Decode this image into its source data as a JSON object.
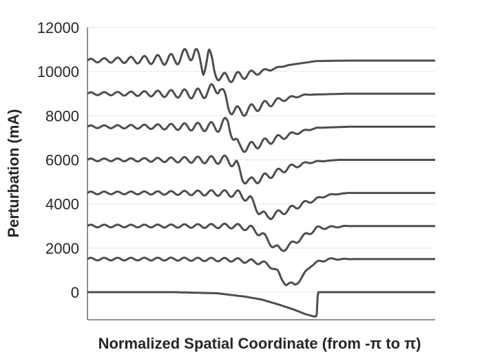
{
  "chart_data": {
    "type": "line",
    "title": "",
    "xlabel": "Normalized Spatial Coordinate (from -π to π)",
    "ylabel": "Perturbation (mA)",
    "xlim": [
      -3.14159,
      3.14159
    ],
    "ylim": [
      -1250,
      12000
    ],
    "yticks": [
      0,
      2000,
      4000,
      6000,
      8000,
      10000,
      12000
    ],
    "grid": "horizontal",
    "legend": "none",
    "line_color": "#4d4d4d",
    "series": [
      {
        "x": [
          -3.14,
          -1.57,
          -0.8,
          -0.3,
          0.0,
          0.3,
          0.6,
          0.8,
          0.95,
          1.0,
          1.02,
          1.57,
          3.14
        ],
        "values": [
          0,
          0,
          -50,
          -200,
          -330,
          -550,
          -800,
          -1000,
          -1100,
          -1100,
          0,
          0,
          0
        ]
      },
      {
        "x": [
          -3.14,
          -1.57,
          -0.5,
          0.0,
          0.2,
          0.3,
          0.35,
          0.45,
          0.6,
          0.75,
          0.9,
          1.2,
          3.14
        ],
        "values": [
          1500,
          1500,
          1470,
          1350,
          1150,
          900,
          650,
          380,
          340,
          700,
          1250,
          1500,
          1500
        ]
      },
      {
        "x": [
          -3.14,
          -1.57,
          -0.5,
          -0.2,
          0.0,
          0.2,
          0.35,
          0.5,
          0.75,
          1.0,
          1.57,
          3.14
        ],
        "values": [
          3000,
          3000,
          3000,
          2900,
          2650,
          2150,
          1900,
          2100,
          2500,
          2900,
          3000,
          3000
        ]
      },
      {
        "x": [
          -3.14,
          -1.57,
          -0.8,
          -0.4,
          -0.2,
          -0.05,
          0.1,
          0.4,
          0.8,
          1.2,
          1.57,
          3.14
        ],
        "values": [
          4500,
          4500,
          4500,
          4450,
          4200,
          3700,
          3400,
          3650,
          4050,
          4400,
          4500,
          4500
        ]
      },
      {
        "x": [
          -3.14,
          -1.57,
          -0.9,
          -0.6,
          -0.45,
          -0.35,
          -0.2,
          0.1,
          0.5,
          0.9,
          1.4,
          3.14
        ],
        "values": [
          6000,
          6000,
          6000,
          6000,
          5800,
          5200,
          5000,
          5250,
          5650,
          5900,
          6000,
          6000
        ]
      },
      {
        "x": [
          -3.14,
          -1.57,
          -1.0,
          -0.75,
          -0.6,
          -0.5,
          -0.4,
          -0.2,
          0.2,
          0.6,
          1.0,
          1.57,
          3.14
        ],
        "values": [
          7500,
          7500,
          7500,
          7500,
          7750,
          7000,
          6550,
          6600,
          6900,
          7200,
          7450,
          7500,
          7500
        ]
      },
      {
        "x": [
          -3.14,
          -1.57,
          -1.1,
          -0.95,
          -0.75,
          -0.6,
          -0.4,
          0.0,
          0.4,
          0.8,
          1.57,
          3.14
        ],
        "values": [
          9000,
          9000,
          9000,
          9100,
          9350,
          8400,
          8150,
          8450,
          8750,
          8950,
          9000,
          9000
        ]
      },
      {
        "x": [
          -3.14,
          -1.57,
          -1.2,
          -1.05,
          -0.95,
          -0.85,
          -0.7,
          -0.5,
          0.0,
          0.5,
          1.0,
          1.57,
          3.14
        ],
        "values": [
          10500,
          10550,
          10900,
          10100,
          10900,
          10000,
          9700,
          9750,
          10000,
          10300,
          10480,
          10500,
          10500
        ]
      }
    ]
  }
}
